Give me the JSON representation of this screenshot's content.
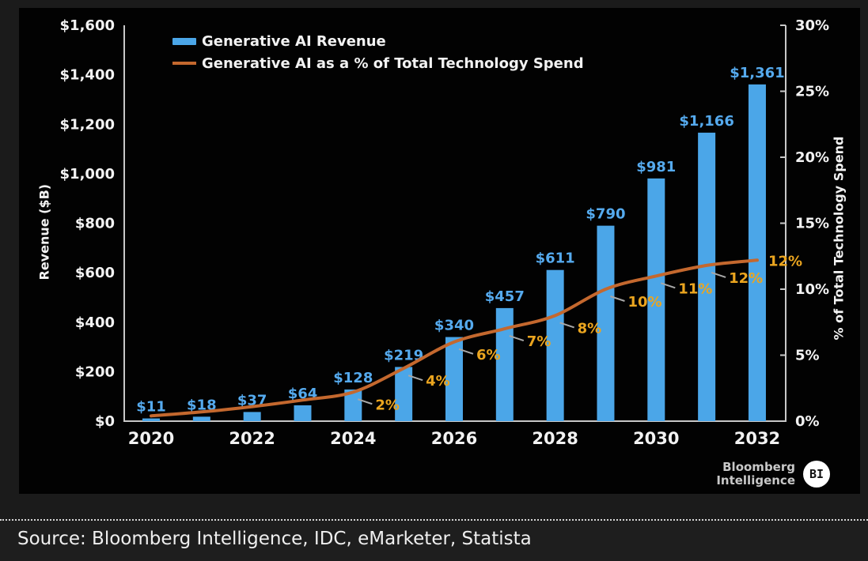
{
  "chart_data": {
    "type": "bar",
    "subtype": "bar-line-combo",
    "categories": [
      "2020",
      "2021",
      "2022",
      "2023",
      "2024",
      "2025",
      "2026",
      "2027",
      "2028",
      "2029",
      "2030",
      "2031",
      "2032"
    ],
    "series": [
      {
        "name": "Generative AI Revenue",
        "type": "bar",
        "axis": "left",
        "color": "#4BA6E8",
        "label_color": "#55AAEE",
        "values": [
          11,
          18,
          37,
          64,
          128,
          219,
          340,
          457,
          611,
          790,
          981,
          1166,
          1361
        ],
        "value_labels": [
          "$11",
          "$18",
          "$37",
          "$64",
          "$128",
          "$219",
          "$340",
          "$457",
          "$611",
          "$790",
          "$981",
          "$1,166",
          "$1,361"
        ]
      },
      {
        "name": "Generative AI as a % of Total Technology Spend",
        "type": "line",
        "axis": "right",
        "color": "#C4682E",
        "label_color": "#EBA51F",
        "values": [
          0.4,
          0.7,
          1.1,
          1.6,
          2.2,
          4,
          6,
          7,
          8,
          10,
          11,
          11.8,
          12.2
        ],
        "point_labels": [
          "",
          "",
          "",
          "",
          "2%",
          "4%",
          "6%",
          "7%",
          "8%",
          "10%",
          "11%",
          "12%",
          "12%"
        ]
      }
    ],
    "left_axis": {
      "title": "Revenue ($B)",
      "min": 0,
      "max": 1600,
      "ticks": [
        "$0",
        "$200",
        "$400",
        "$600",
        "$800",
        "$1,000",
        "$1,200",
        "$1,400",
        "$1,600"
      ]
    },
    "right_axis": {
      "title": "% of Total Technology Spend",
      "min": 0,
      "max": 30,
      "ticks": [
        "0%",
        "5%",
        "10%",
        "15%",
        "20%",
        "25%",
        "30%"
      ]
    },
    "x_axis": {
      "tick_labels": [
        "2020",
        "2022",
        "2024",
        "2026",
        "2028",
        "2030",
        "2032"
      ]
    },
    "legend_position": "top-left",
    "grid": false,
    "background": "#020202",
    "axis_line_color": "#c8c8c8",
    "text_color": "#f2f2f2"
  },
  "branding": {
    "line1": "Bloomberg",
    "line2": "Intelligence",
    "badge": "BI"
  },
  "footer": {
    "source": "Source: Bloomberg Intelligence, IDC, eMarketer, Statista"
  }
}
